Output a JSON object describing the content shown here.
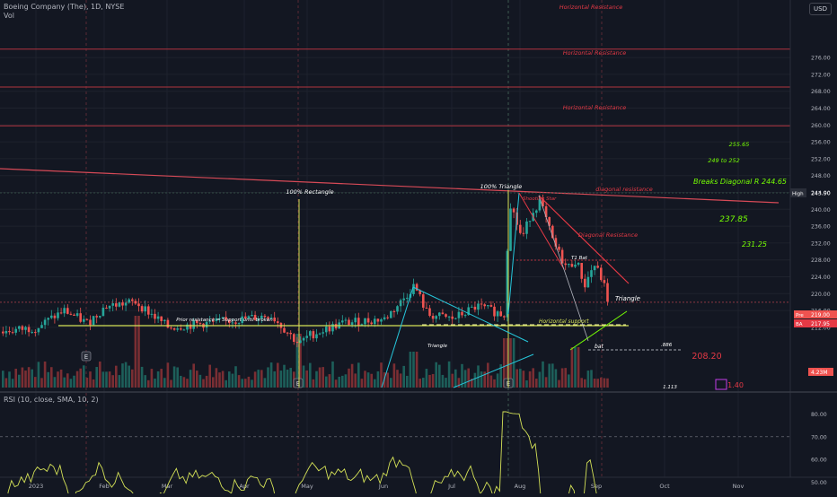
{
  "header": {
    "symbol_line": "Boeing Company (The), 1D, NYSE",
    "volume_label": "Vol",
    "currency": "USD"
  },
  "rsi": {
    "label": "RSI (10, close, SMA, 10, 2)",
    "axis_ticks": [
      "80.00",
      "70.00",
      "60.00",
      "50.00",
      "40.00",
      "35.00"
    ],
    "value_badge": "35.46"
  },
  "price_axis": {
    "ticks": [
      "276.00",
      "272.00",
      "268.00",
      "264.00",
      "260.00",
      "256.00",
      "252.00",
      "248.00",
      "244.00",
      "240.00",
      "236.00",
      "232.00",
      "228.00",
      "224.00",
      "220.00",
      "216.00",
      "212.00"
    ],
    "high_badge": {
      "label": "High",
      "value": "243.90"
    },
    "pre_badge": {
      "label": "Pre",
      "value": "219.00"
    },
    "bar_badge": {
      "label": "BA",
      "value": "217.95"
    },
    "volume_badge": "4.23M"
  },
  "time_axis": {
    "labels": [
      "2023",
      "Feb",
      "Mar",
      "Apr",
      "May",
      "Jun",
      "Jul",
      "Aug",
      "Sep",
      "Oct",
      "Nov"
    ]
  },
  "annotations": {
    "hr_top": "Horizontal Resistance",
    "hr_mid": "Horizontal Resistance",
    "hr_low": "Horizontal Resistance",
    "diag_res": "diagonal resistance",
    "diag_res2": "Diagonal Resistance",
    "rect": "100% Rectangle",
    "tri100": "100% Triangle",
    "shooting": "Shooting Star",
    "t1bat": "T1 Bat",
    "triangle_right": "Triangle",
    "triangle_left": "Triangle",
    "horizontal_support": "Horizontal support",
    "prior_resistance": "Prior resistance = Support until broken",
    "bat": "bat",
    "ratio_886": ".886",
    "target_25565": "255.65",
    "target_range": "249 to 252",
    "breaks": "Breaks Diagonal R 244.65",
    "t23785": "237.85",
    "t23125": "231.25",
    "t20820": "208.20",
    "ratio_1113": "1.113",
    "ratio_140": "1.40",
    "earnings_marker": "E"
  },
  "chart_data": [
    {
      "type": "candlestick",
      "title": "Boeing Company (The), 1D, NYSE",
      "ylim": [
        208,
        280
      ],
      "y_ticks": [
        212,
        216,
        220,
        224,
        228,
        232,
        236,
        240,
        244,
        248,
        252,
        256,
        260,
        264,
        268,
        272,
        276
      ],
      "x": [
        "2023",
        "Feb",
        "Mar",
        "Apr",
        "May",
        "Jun",
        "Jul",
        "Aug",
        "Sep",
        "Oct",
        "Nov"
      ],
      "series": [
        {
          "close_path_by_month": [
            {
              "x": "2023",
              "close": 211
            },
            {
              "x": "Feb",
              "close": 214
            },
            {
              "x": "Mar",
              "close": 212
            },
            {
              "x": "Apr",
              "close": 213
            },
            {
              "x": "May",
              "close": 208
            },
            {
              "x": "Jun",
              "close": 222
            },
            {
              "x": "Jul",
              "close": 216
            },
            {
              "x": "Aug",
              "close": 242
            },
            {
              "x": "Sep",
              "close": 218
            }
          ]
        }
      ],
      "levels": {
        "horizontal_resistance": [
          278,
          269,
          259.8
        ],
        "prior_resistance_support": 218.6,
        "horizontal_support": 218.4,
        "high": 243.9,
        "last": 217.95
      }
    },
    {
      "type": "line",
      "title": "RSI (10, close, SMA, 10, 2)",
      "ylim": [
        30,
        85
      ],
      "y_ticks": [
        35,
        40,
        50,
        60,
        70,
        80
      ],
      "last_value": 35.46
    }
  ]
}
